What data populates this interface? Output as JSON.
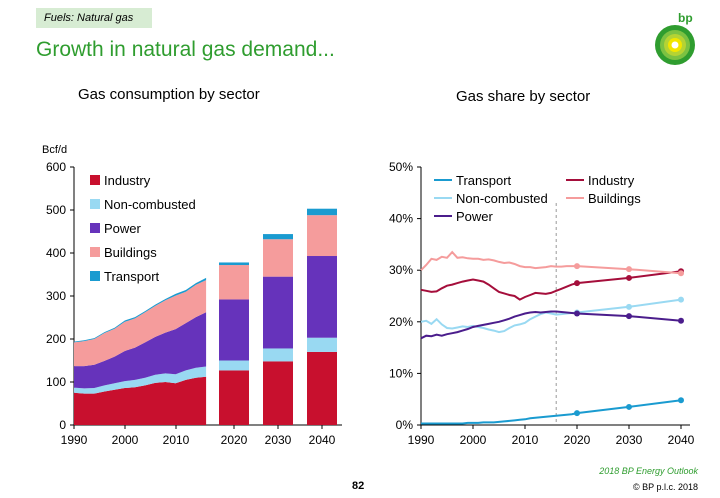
{
  "header": {
    "tag": "Fuels: Natural gas",
    "title": "Growth in natural gas demand...",
    "logo_text": "bp"
  },
  "footer": {
    "outlook": "2018 BP Energy Outlook",
    "copyright": "© BP p.l.c. 2018",
    "page_number": "82"
  },
  "colors": {
    "industry": "#c8102e",
    "noncombusted": "#99d9f2",
    "power": "#6633bb",
    "buildings": "#f59c9c",
    "transport": "#1a9bd0",
    "industry_line": "#a50e3b",
    "power_line": "#4b1d8c"
  },
  "chart_data": [
    {
      "type": "area",
      "title": "Gas consumption by sector",
      "ylabel": "Bcf/d",
      "ylim": [
        0,
        600
      ],
      "yticks": [
        0,
        100,
        200,
        300,
        400,
        500,
        600
      ],
      "xticks": [
        "1990",
        "2000",
        "2010",
        "2020",
        "2030",
        "2040"
      ],
      "x": [
        1990,
        1992,
        1994,
        1996,
        1998,
        2000,
        2002,
        2004,
        2006,
        2008,
        2010,
        2012,
        2014,
        2016
      ],
      "series": [
        {
          "name": "Industry",
          "key": "industry",
          "values": [
            75,
            73,
            73,
            78,
            82,
            86,
            88,
            92,
            98,
            100,
            97,
            105,
            110,
            112
          ]
        },
        {
          "name": "Non-combusted",
          "key": "noncombusted",
          "values": [
            12,
            12,
            13,
            14,
            15,
            16,
            17,
            18,
            19,
            20,
            21,
            22,
            23,
            24
          ]
        },
        {
          "name": "Power",
          "key": "power",
          "values": [
            50,
            52,
            54,
            57,
            62,
            70,
            75,
            82,
            88,
            95,
            105,
            110,
            118,
            126
          ]
        },
        {
          "name": "Buildings",
          "key": "buildings",
          "values": [
            55,
            58,
            60,
            65,
            65,
            68,
            68,
            70,
            72,
            75,
            78,
            73,
            75,
            75
          ]
        },
        {
          "name": "Transport",
          "key": "transport",
          "values": [
            2,
            2,
            2,
            2,
            2,
            3,
            3,
            3,
            3,
            3,
            4,
            4,
            4,
            5
          ]
        }
      ],
      "bar_categories": [
        "2020",
        "2030",
        "2040"
      ],
      "bars": [
        {
          "key": "industry",
          "values": [
            127,
            148,
            170
          ]
        },
        {
          "key": "noncombusted",
          "values": [
            23,
            30,
            33
          ]
        },
        {
          "key": "power",
          "values": [
            142,
            167,
            190
          ]
        },
        {
          "key": "buildings",
          "values": [
            80,
            87,
            95
          ]
        },
        {
          "key": "transport",
          "values": [
            6,
            12,
            15
          ]
        }
      ],
      "legend": {
        "placement": "top-left",
        "items": [
          "Industry",
          "Non-combusted",
          "Power",
          "Buildings",
          "Transport"
        ]
      }
    },
    {
      "type": "line",
      "title": "Gas share by sector",
      "ylim": [
        0,
        50
      ],
      "yticks": [
        "0%",
        "10%",
        "20%",
        "30%",
        "40%",
        "50%"
      ],
      "xticks": [
        "1990",
        "2000",
        "2010",
        "2020",
        "2030",
        "2040"
      ],
      "divider_year": 2016,
      "history_x": [
        1990,
        1991,
        1992,
        1993,
        1994,
        1995,
        1996,
        1997,
        1998,
        1999,
        2000,
        2001,
        2002,
        2003,
        2004,
        2005,
        2006,
        2007,
        2008,
        2009,
        2010,
        2011,
        2012,
        2013,
        2014,
        2015,
        2016,
        2017,
        2018,
        2019,
        2020
      ],
      "projection_x": [
        2020,
        2030,
        2040
      ],
      "series": [
        {
          "name": "Transport",
          "key": "transport",
          "history": [
            0.3,
            0.3,
            0.3,
            0.3,
            0.3,
            0.3,
            0.3,
            0.3,
            0.3,
            0.4,
            0.4,
            0.4,
            0.5,
            0.5,
            0.5,
            0.6,
            0.7,
            0.8,
            0.9,
            1.0,
            1.1,
            1.3,
            1.4,
            1.5,
            1.6,
            1.7,
            1.8,
            1.9,
            2.0,
            2.1,
            2.3
          ],
          "projection": [
            2.3,
            3.5,
            4.8
          ]
        },
        {
          "name": "Industry",
          "key": "industry_line",
          "history": [
            26.2,
            26.0,
            25.8,
            25.9,
            26.5,
            27.0,
            27.2,
            27.5,
            27.8,
            28.0,
            28.2,
            28.0,
            27.8,
            27.2,
            26.5,
            25.8,
            25.5,
            25.2,
            25.0,
            24.3,
            24.8,
            25.2,
            25.6,
            25.5,
            25.4,
            25.6,
            26.0,
            26.4,
            26.8,
            27.2,
            27.5
          ],
          "projection": [
            27.5,
            28.5,
            29.8
          ]
        },
        {
          "name": "Non-combusted",
          "key": "noncombusted",
          "history": [
            20.0,
            20.2,
            19.6,
            20.5,
            19.5,
            18.8,
            18.7,
            18.9,
            19.1,
            19.0,
            19.2,
            19.0,
            18.8,
            18.5,
            18.3,
            18.0,
            18.2,
            18.8,
            19.3,
            19.5,
            19.8,
            20.5,
            21.0,
            21.5,
            21.8,
            21.6,
            21.4,
            21.5,
            21.6,
            21.7,
            21.8
          ],
          "projection": [
            21.8,
            22.9,
            24.3
          ]
        },
        {
          "name": "Buildings",
          "key": "buildings",
          "history": [
            30.0,
            31.0,
            32.2,
            32.0,
            32.6,
            32.4,
            33.5,
            32.4,
            32.5,
            32.3,
            32.2,
            32.2,
            32.0,
            32.1,
            31.9,
            31.6,
            31.4,
            31.5,
            31.2,
            30.8,
            30.6,
            30.6,
            30.4,
            30.5,
            30.6,
            30.8,
            30.7,
            30.7,
            30.8,
            30.8,
            30.8
          ],
          "projection": [
            30.8,
            30.2,
            29.4
          ]
        },
        {
          "name": "Power",
          "key": "power_line",
          "history": [
            16.8,
            17.3,
            17.2,
            17.5,
            17.3,
            17.6,
            17.8,
            18.0,
            18.3,
            18.6,
            19.0,
            19.2,
            19.4,
            19.6,
            19.8,
            20.0,
            20.3,
            20.6,
            21.0,
            21.3,
            21.6,
            21.8,
            21.9,
            21.8,
            21.9,
            22.0,
            22.0,
            21.9,
            21.8,
            21.7,
            21.6
          ],
          "projection": [
            21.6,
            21.1,
            20.2
          ]
        }
      ],
      "legend": {
        "placement": "top",
        "items": [
          "Transport",
          "Industry",
          "Non-combusted",
          "Buildings",
          "Power"
        ]
      }
    }
  ]
}
